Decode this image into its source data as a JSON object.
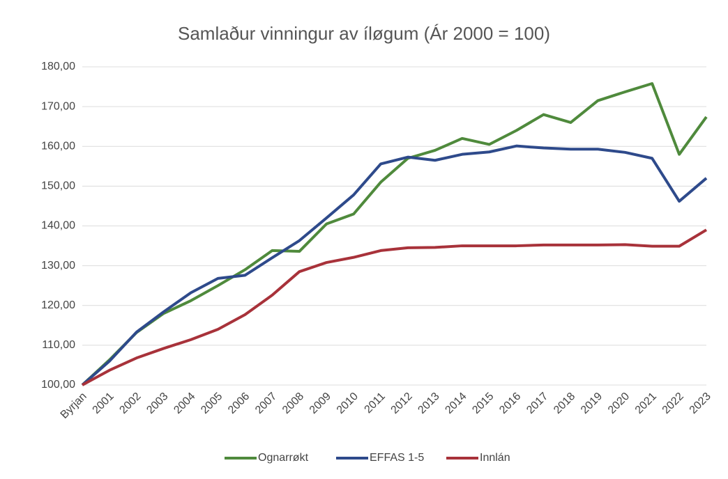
{
  "chart_data": {
    "type": "line",
    "title": "Samlaður vinningur av íløgum (Ár 2000 = 100)",
    "categories": [
      "Byrjan",
      "2001",
      "2002",
      "2003",
      "2004",
      "2005",
      "2006",
      "2007",
      "2008",
      "2009",
      "2010",
      "2011",
      "2012",
      "2013",
      "2014",
      "2015",
      "2016",
      "2017",
      "2018",
      "2019",
      "2020",
      "2021",
      "2022",
      "2023"
    ],
    "series": [
      {
        "name": "Ognarrøkt",
        "color": "#4f8a3c",
        "values": [
          100,
          106.3,
          113.2,
          118,
          121.2,
          125,
          129,
          133.8,
          133.6,
          140.5,
          143,
          151,
          157,
          159,
          162,
          160.5,
          164,
          168,
          166,
          171.5,
          173.7,
          175.8,
          158,
          167.4
        ]
      },
      {
        "name": "EFFAS 1-5",
        "color": "#2e4a8b",
        "values": [
          100,
          106,
          113.3,
          118.4,
          123.2,
          126.8,
          127.6,
          132,
          136.3,
          142,
          147.8,
          155.6,
          157.3,
          156.5,
          158,
          158.6,
          160.1,
          159.6,
          159.3,
          159.3,
          158.5,
          157,
          146.2,
          152
        ]
      },
      {
        "name": "Innlán",
        "color": "#a8323a",
        "values": [
          100,
          103.7,
          106.8,
          109.2,
          111.4,
          114,
          117.7,
          122.6,
          128.5,
          130.8,
          132.1,
          133.8,
          134.5,
          134.6,
          135,
          135,
          135,
          135.2,
          135.2,
          135.2,
          135.3,
          134.9,
          134.9,
          139
        ]
      }
    ],
    "ylim": [
      100,
      180
    ],
    "yticks": [
      {
        "value": 100,
        "label": "100,00"
      },
      {
        "value": 110,
        "label": "110,00"
      },
      {
        "value": 120,
        "label": "120,00"
      },
      {
        "value": 130,
        "label": "130,00"
      },
      {
        "value": 140,
        "label": "140,00"
      },
      {
        "value": 150,
        "label": "150,00"
      },
      {
        "value": 160,
        "label": "160,00"
      },
      {
        "value": 170,
        "label": "170,00"
      },
      {
        "value": 180,
        "label": "180,00"
      }
    ],
    "grid": true,
    "legend": "bottom"
  }
}
